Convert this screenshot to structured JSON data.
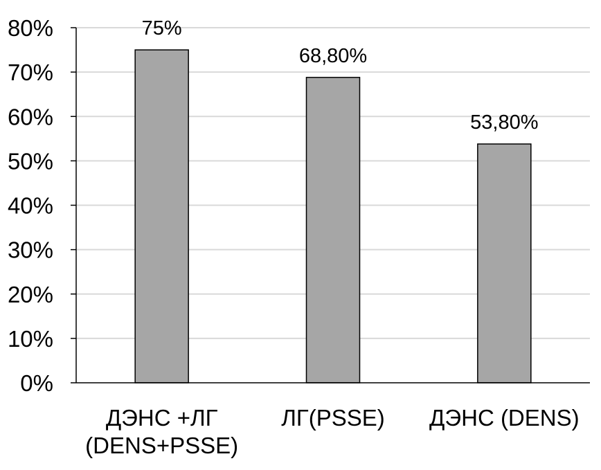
{
  "chart_data": {
    "type": "bar",
    "categories": [
      [
        "ДЭНС +ЛГ",
        "(DENS+PSSE)"
      ],
      [
        "ЛГ(PSSE)"
      ],
      [
        "ДЭНС (DENS)"
      ]
    ],
    "values": [
      75,
      68.8,
      53.8
    ],
    "data_labels": [
      "75%",
      "68,80%",
      "53,80%"
    ],
    "ylim": [
      0,
      80
    ],
    "y_ticks": [
      0,
      10,
      20,
      30,
      40,
      50,
      60,
      70,
      80
    ],
    "y_tick_labels": [
      "0%",
      "10%",
      "20%",
      "30%",
      "40%",
      "50%",
      "60%",
      "70%",
      "80%"
    ],
    "grid": true,
    "legend": "none",
    "colors": {
      "bar_fill": "#a6a6a6",
      "bar_stroke": "#000000",
      "grid": "#d9d9d9",
      "axis": "#000000"
    }
  }
}
